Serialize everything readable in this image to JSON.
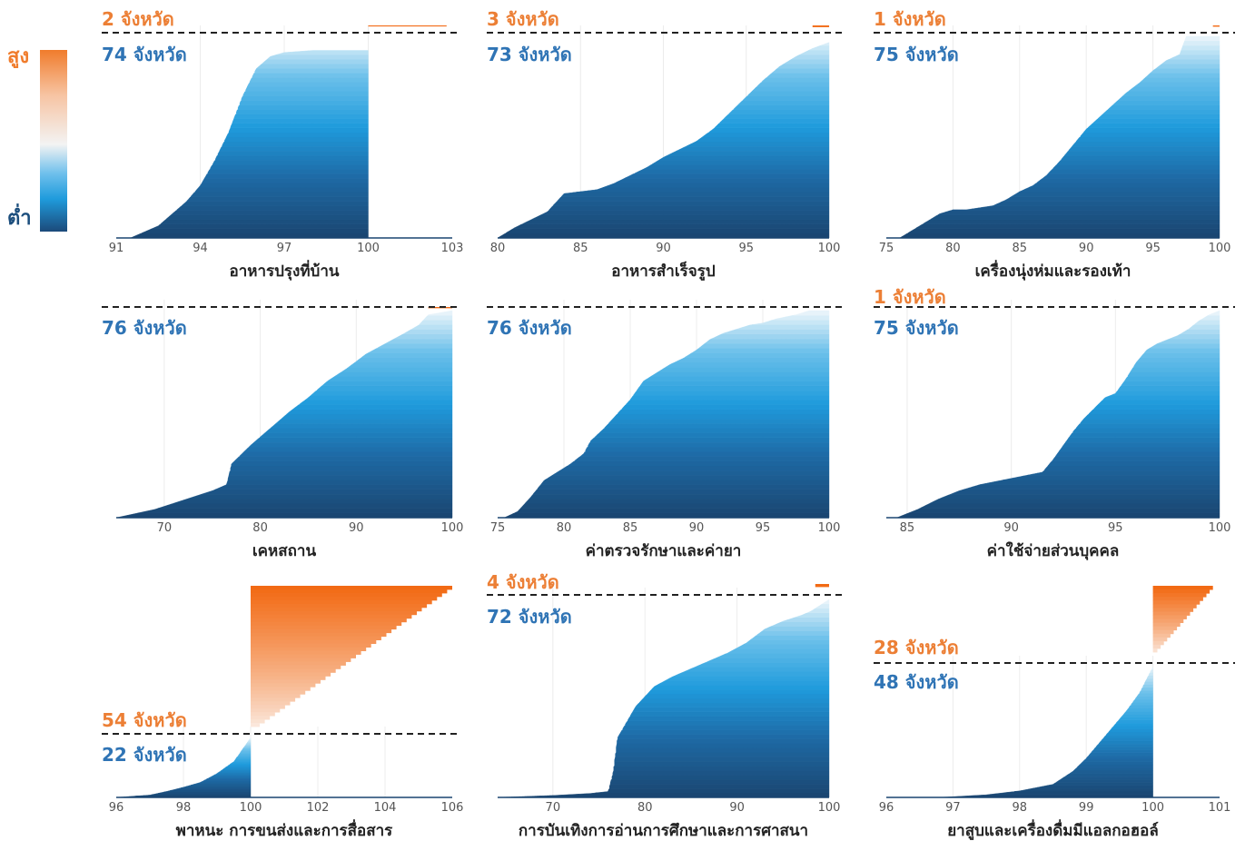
{
  "legend": {
    "high_label": "สูง",
    "low_label": "ต่ำ",
    "high_color": "#f07c2c",
    "low_color": "#1c4e7d"
  },
  "chart_data": [
    {
      "type": "area",
      "title": "อาหารปรุงที่บ้าน",
      "xlim": [
        91,
        103
      ],
      "xticks": [
        91,
        94,
        97,
        100,
        103
      ],
      "threshold": 100,
      "above_count_label": "2 จังหวัด",
      "below_count_label": "74 จังหวัด",
      "below_curve": [
        [
          91.5,
          0
        ],
        [
          92.0,
          3
        ],
        [
          92.5,
          6
        ],
        [
          93.0,
          12
        ],
        [
          93.5,
          18
        ],
        [
          94.0,
          26
        ],
        [
          94.5,
          38
        ],
        [
          95.0,
          52
        ],
        [
          95.5,
          70
        ],
        [
          96.0,
          84
        ],
        [
          96.5,
          90
        ],
        [
          97.0,
          92
        ],
        [
          98.0,
          93
        ],
        [
          100.0,
          93
        ]
      ],
      "above_curve": [
        [
          100.0,
          0
        ],
        [
          102.8,
          2
        ]
      ]
    },
    {
      "type": "area",
      "title": "อาหารสำเร็จรูป",
      "xlim": [
        80,
        100
      ],
      "xticks": [
        80,
        85,
        90,
        95,
        100
      ],
      "threshold": 100,
      "above_count_label": "3 จังหวัด",
      "below_count_label": "73 จังหวัด",
      "below_curve": [
        [
          80.0,
          0
        ],
        [
          81.0,
          5
        ],
        [
          82.0,
          9
        ],
        [
          83.0,
          13
        ],
        [
          84.0,
          22
        ],
        [
          85.0,
          23
        ],
        [
          86.0,
          24
        ],
        [
          87.0,
          27
        ],
        [
          88.0,
          31
        ],
        [
          89.0,
          35
        ],
        [
          90.0,
          40
        ],
        [
          91.0,
          44
        ],
        [
          92.0,
          48
        ],
        [
          93.0,
          54
        ],
        [
          94.0,
          62
        ],
        [
          95.0,
          70
        ],
        [
          96.0,
          78
        ],
        [
          97.0,
          85
        ],
        [
          98.0,
          90
        ],
        [
          99.0,
          94
        ],
        [
          100.0,
          97
        ]
      ],
      "above_curve": [
        [
          99.0,
          0
        ],
        [
          100.0,
          3
        ]
      ]
    },
    {
      "type": "area",
      "title": "เครื่องนุ่งห่มและรองเท้า",
      "xlim": [
        75,
        100
      ],
      "xticks": [
        75,
        80,
        85,
        90,
        95,
        100
      ],
      "threshold": 100,
      "above_count_label": "1 จังหวัด",
      "below_count_label": "75 จังหวัด",
      "below_curve": [
        [
          76.0,
          0
        ],
        [
          77.0,
          4
        ],
        [
          78.0,
          8
        ],
        [
          79.0,
          12
        ],
        [
          80.0,
          14
        ],
        [
          81.0,
          14
        ],
        [
          82.0,
          15
        ],
        [
          83.0,
          16
        ],
        [
          84.0,
          19
        ],
        [
          85.0,
          23
        ],
        [
          86.0,
          26
        ],
        [
          87.0,
          31
        ],
        [
          88.0,
          38
        ],
        [
          89.0,
          46
        ],
        [
          90.0,
          54
        ],
        [
          91.0,
          60
        ],
        [
          92.0,
          66
        ],
        [
          93.0,
          72
        ],
        [
          94.0,
          77
        ],
        [
          95.0,
          83
        ],
        [
          96.0,
          88
        ],
        [
          97.0,
          91
        ],
        [
          97.5,
          100
        ],
        [
          100.0,
          100
        ]
      ],
      "above_curve": [
        [
          99.5,
          0
        ],
        [
          100.0,
          1
        ]
      ]
    },
    {
      "type": "area",
      "title": "เคหสถาน",
      "xlim": [
        65,
        100
      ],
      "xticks": [
        70,
        80,
        90,
        100
      ],
      "threshold": 100,
      "above_count_label": "",
      "below_count_label": "76 จังหวัด",
      "below_curve": [
        [
          65.0,
          0
        ],
        [
          67.0,
          2
        ],
        [
          69.0,
          4
        ],
        [
          71.0,
          7
        ],
        [
          73.0,
          10
        ],
        [
          75.0,
          13
        ],
        [
          76.5,
          16
        ],
        [
          77.0,
          26
        ],
        [
          79.0,
          35
        ],
        [
          81.0,
          43
        ],
        [
          83.0,
          51
        ],
        [
          85.0,
          58
        ],
        [
          87.0,
          66
        ],
        [
          89.0,
          72
        ],
        [
          91.0,
          79
        ],
        [
          93.0,
          84
        ],
        [
          95.0,
          89
        ],
        [
          96.5,
          93
        ],
        [
          97.5,
          98
        ],
        [
          100.0,
          100
        ]
      ],
      "above_curve": [
        [
          97.5,
          0
        ],
        [
          100.0,
          1
        ]
      ]
    },
    {
      "type": "area",
      "title": "ค่าตรวจรักษาและค่ายา",
      "xlim": [
        75,
        100
      ],
      "xticks": [
        75,
        80,
        85,
        90,
        95,
        100
      ],
      "threshold": 100,
      "above_count_label": "",
      "below_count_label": "76 จังหวัด",
      "below_curve": [
        [
          75.5,
          0
        ],
        [
          76.5,
          3
        ],
        [
          77.5,
          10
        ],
        [
          78.5,
          18
        ],
        [
          79.5,
          22
        ],
        [
          80.5,
          26
        ],
        [
          81.5,
          31
        ],
        [
          82.0,
          37
        ],
        [
          83.0,
          43
        ],
        [
          84.0,
          50
        ],
        [
          85.0,
          57
        ],
        [
          86.0,
          66
        ],
        [
          87.0,
          70
        ],
        [
          88.0,
          74
        ],
        [
          89.0,
          77
        ],
        [
          90.0,
          81
        ],
        [
          91.0,
          86
        ],
        [
          92.0,
          89
        ],
        [
          93.0,
          91
        ],
        [
          94.0,
          93
        ],
        [
          95.0,
          94
        ],
        [
          96.0,
          96
        ],
        [
          97.5,
          98
        ],
        [
          98.5,
          100
        ],
        [
          100.0,
          100
        ]
      ],
      "above_curve": []
    },
    {
      "type": "area",
      "title": "ค่าใช้จ่ายส่วนบุคคล",
      "xlim": [
        84,
        100
      ],
      "xticks": [
        85,
        90,
        95,
        100
      ],
      "threshold": 100,
      "above_count_label": "1 จังหวัด",
      "below_count_label": "75 จังหวัด",
      "below_curve": [
        [
          84.5,
          0
        ],
        [
          85.5,
          4
        ],
        [
          86.5,
          9
        ],
        [
          87.5,
          13
        ],
        [
          88.5,
          16
        ],
        [
          89.5,
          18
        ],
        [
          90.5,
          20
        ],
        [
          91.5,
          22
        ],
        [
          92.0,
          28
        ],
        [
          92.5,
          35
        ],
        [
          93.0,
          42
        ],
        [
          93.5,
          48
        ],
        [
          94.0,
          53
        ],
        [
          94.5,
          58
        ],
        [
          95.0,
          60
        ],
        [
          95.5,
          67
        ],
        [
          96.0,
          75
        ],
        [
          96.5,
          81
        ],
        [
          97.0,
          84
        ],
        [
          97.5,
          86
        ],
        [
          98.0,
          88
        ],
        [
          98.5,
          91
        ],
        [
          99.0,
          95
        ],
        [
          99.5,
          98
        ],
        [
          100.0,
          100
        ]
      ],
      "above_curve": []
    },
    {
      "type": "area",
      "title": "พาหนะ การขนส่งและการสื่อสาร",
      "xlim": [
        96,
        106
      ],
      "xticks": [
        96,
        98,
        100,
        102,
        104,
        106
      ],
      "threshold": 100,
      "above_count_label": "54 จังหวัด",
      "below_count_label": "22 จังหวัด",
      "below_curve": [
        [
          96.0,
          0
        ],
        [
          97.0,
          4
        ],
        [
          97.5,
          10
        ],
        [
          98.0,
          17
        ],
        [
          98.5,
          25
        ],
        [
          99.0,
          40
        ],
        [
          99.5,
          60
        ],
        [
          100.0,
          100
        ]
      ],
      "above_curve": [
        [
          100.0,
          0
        ],
        [
          100.5,
          10
        ],
        [
          101.0,
          22
        ],
        [
          101.5,
          34
        ],
        [
          102.0,
          44
        ],
        [
          102.5,
          52
        ],
        [
          103.0,
          60
        ],
        [
          103.5,
          68
        ],
        [
          104.0,
          78
        ],
        [
          104.5,
          88
        ],
        [
          105.0,
          96
        ],
        [
          106.0,
          100
        ]
      ]
    },
    {
      "type": "area",
      "title": "การบันเทิงการอ่านการศึกษาและการศาสนา",
      "xlim": [
        64,
        100
      ],
      "xticks": [
        70,
        80,
        90,
        100
      ],
      "threshold": 100,
      "above_count_label": "4 จังหวัด",
      "below_count_label": "72 จังหวัด",
      "below_curve": [
        [
          64.0,
          0
        ],
        [
          70.0,
          1
        ],
        [
          74.0,
          2
        ],
        [
          76.0,
          3
        ],
        [
          76.5,
          12
        ],
        [
          77.0,
          30
        ],
        [
          78.0,
          38
        ],
        [
          79.0,
          46
        ],
        [
          80.0,
          51
        ],
        [
          81.0,
          56
        ],
        [
          83.0,
          61
        ],
        [
          85.0,
          65
        ],
        [
          87.0,
          69
        ],
        [
          89.0,
          73
        ],
        [
          91.0,
          78
        ],
        [
          93.0,
          85
        ],
        [
          95.0,
          89
        ],
        [
          97.0,
          92
        ],
        [
          98.0,
          94
        ],
        [
          99.0,
          97
        ],
        [
          100.0,
          100
        ]
      ],
      "above_curve": [
        [
          98.5,
          0
        ],
        [
          100.0,
          3
        ]
      ]
    },
    {
      "type": "area",
      "title": "ยาสูบและเครื่องดื่มมีแอลกอฮอล์",
      "xlim": [
        96,
        101
      ],
      "xticks": [
        96,
        97,
        98,
        99,
        100,
        101
      ],
      "threshold": 100,
      "above_count_label": "28 จังหวัด",
      "below_count_label": "48 จังหวัด",
      "below_curve": [
        [
          96.8,
          0
        ],
        [
          97.5,
          2
        ],
        [
          98.0,
          5
        ],
        [
          98.5,
          10
        ],
        [
          98.8,
          20
        ],
        [
          99.0,
          30
        ],
        [
          99.3,
          48
        ],
        [
          99.6,
          66
        ],
        [
          99.8,
          80
        ],
        [
          100.0,
          100
        ]
      ],
      "above_curve": [
        [
          100.0,
          0
        ],
        [
          100.2,
          30
        ],
        [
          100.4,
          55
        ],
        [
          100.6,
          75
        ],
        [
          100.8,
          90
        ],
        [
          100.9,
          100
        ]
      ]
    }
  ]
}
